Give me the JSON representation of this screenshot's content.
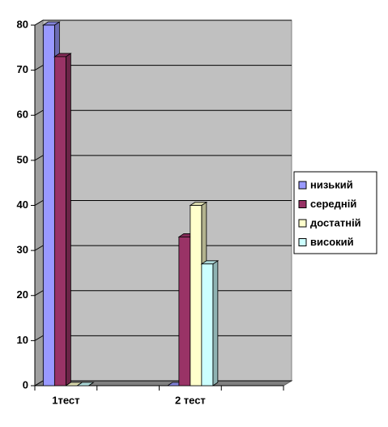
{
  "chart_data": {
    "type": "bar",
    "categories": [
      "1тест",
      null,
      "2 тест",
      null
    ],
    "series": [
      {
        "name": "низький",
        "color": "#9999ff",
        "values": [
          80,
          null,
          0,
          null
        ]
      },
      {
        "name": "середній",
        "color": "#993366",
        "values": [
          73,
          null,
          33,
          null
        ]
      },
      {
        "name": "достатній",
        "color": "#ffffcc",
        "values": [
          0,
          null,
          40,
          null
        ]
      },
      {
        "name": "високий",
        "color": "#ccffff",
        "values": [
          0,
          null,
          27,
          null
        ]
      }
    ],
    "ylim": [
      0,
      80
    ],
    "yticks": [
      0,
      10,
      20,
      30,
      40,
      50,
      60,
      70,
      80
    ],
    "grid": true,
    "legend": "right"
  }
}
